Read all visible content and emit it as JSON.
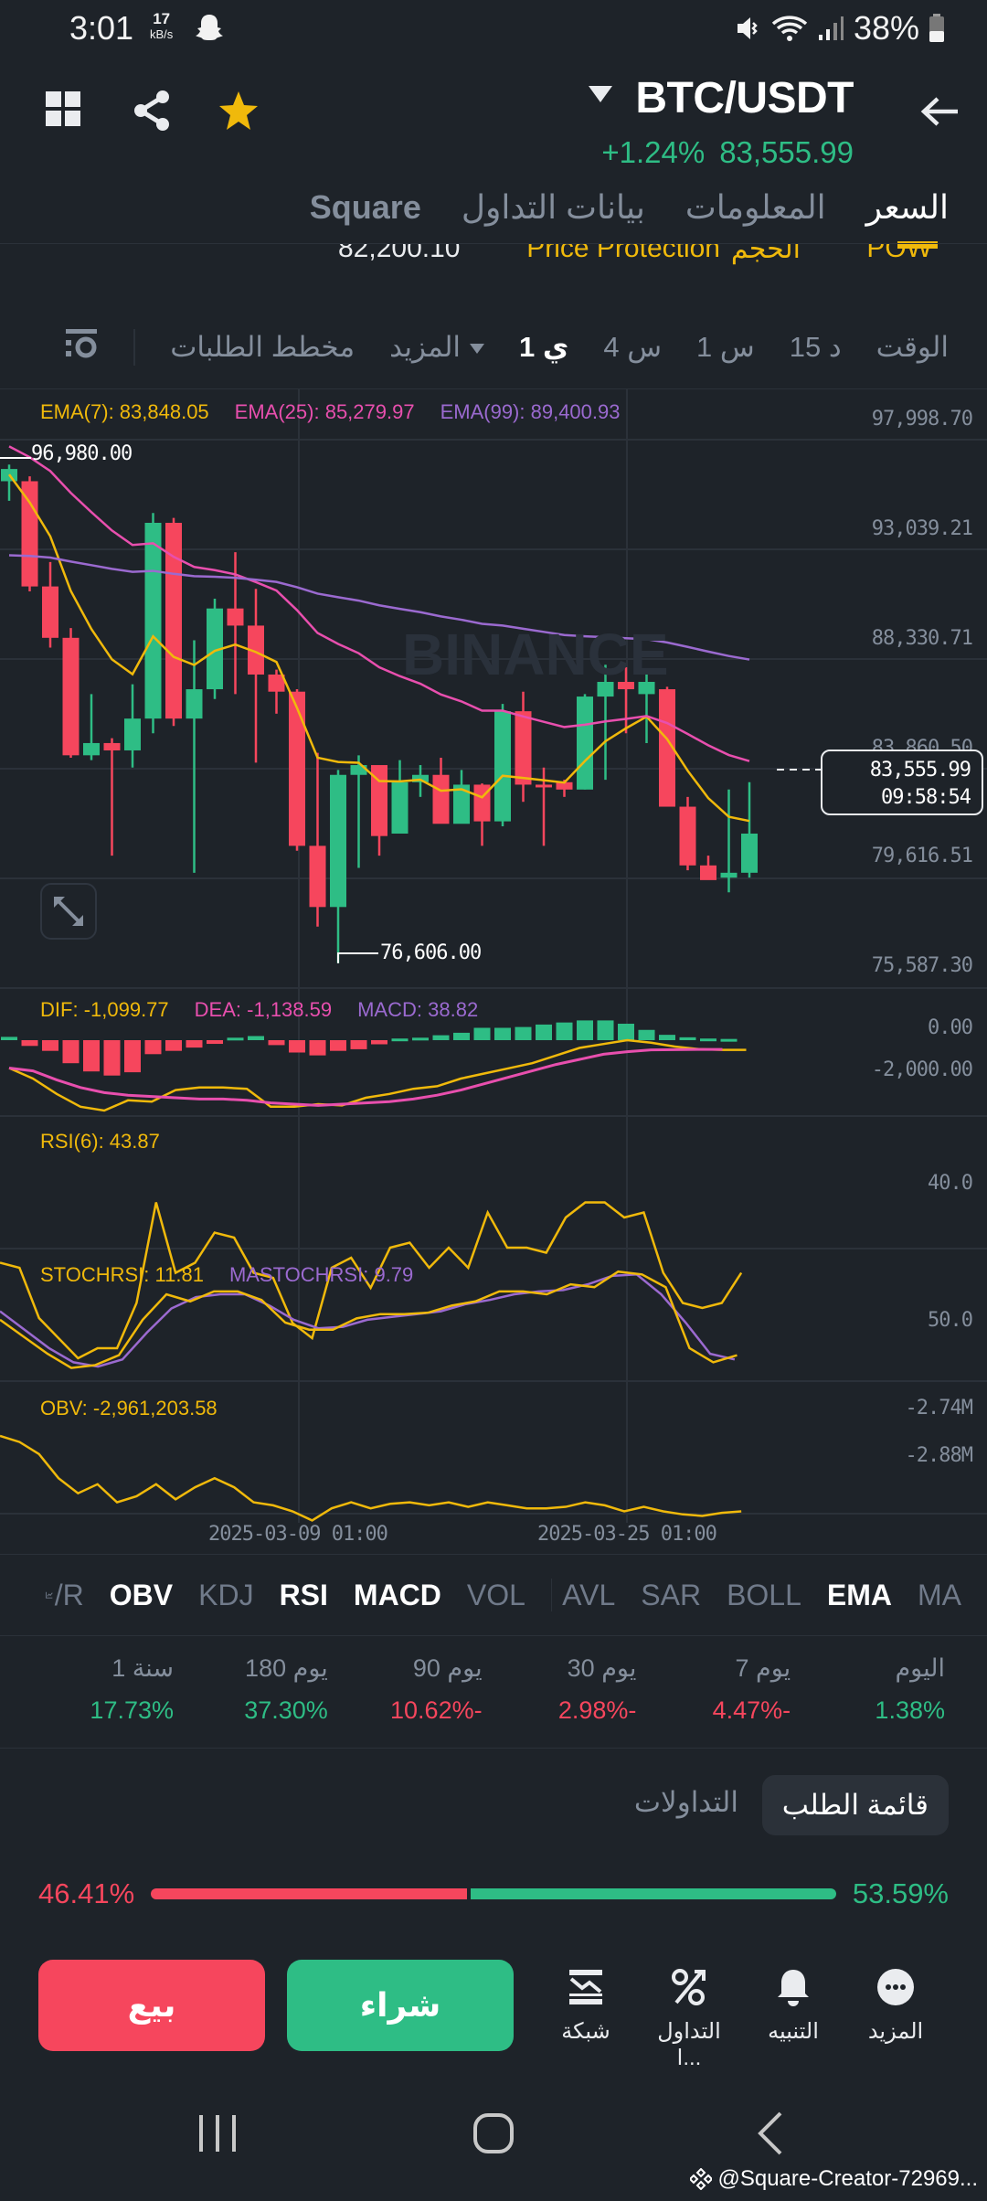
{
  "status_bar": {
    "time": "3:01",
    "net_speed": "17",
    "net_unit": "kB/s",
    "battery": "38%"
  },
  "header": {
    "pair": "BTC/USDT",
    "change_pct": "+1.24%",
    "last_price": "83,555.99",
    "colors": {
      "up": "#2ebd85",
      "down": "#f6465d",
      "accent": "#f0b90b"
    }
  },
  "tabs": [
    {
      "label": "السعر",
      "active": true
    },
    {
      "label": "المعلومات"
    },
    {
      "label": "بيانات التداول"
    },
    {
      "label": "Square"
    }
  ],
  "strip": {
    "items": [
      "POW",
      "الحجم",
      "Price Protection",
      "82,200.10"
    ]
  },
  "timeframes": {
    "items": [
      {
        "label": "الوقت"
      },
      {
        "label": "15 د"
      },
      {
        "label": "1 س"
      },
      {
        "label": "4 س"
      },
      {
        "label": "1 ي",
        "active": true
      },
      {
        "label": "المزيد"
      }
    ],
    "depth_label": "مخطط الطلبات"
  },
  "chart_data": [
    {
      "type": "candlestick",
      "title": "BTC/USDT 1D",
      "legend": [
        {
          "name": "EMA(7)",
          "value": "83,848.05",
          "color": "#f0b90b"
        },
        {
          "name": "EMA(25)",
          "value": "85,279.97",
          "color": "#e84fae"
        },
        {
          "name": "EMA(99)",
          "value": "89,400.93",
          "color": "#9b6ad0"
        }
      ],
      "y_ticks": [
        "97,998.70",
        "93,039.21",
        "88,330.71",
        "83,860.50",
        "79,616.51",
        "75,587.30"
      ],
      "ylim": [
        75587.3,
        97998.7
      ],
      "high_marker": "96,980.00",
      "low_marker": "76,606.00",
      "current_price": "83,555.99",
      "countdown": "09:58:54",
      "x_ticks": [
        "2025-03-09 01:00",
        "2025-03-25 01:00"
      ],
      "candles": [
        [
          96300,
          96980,
          95500,
          96800
        ],
        [
          96300,
          96500,
          91800,
          92000
        ],
        [
          92000,
          93000,
          89500,
          89900
        ],
        [
          89900,
          90300,
          85000,
          85100
        ],
        [
          85100,
          87600,
          84900,
          85600
        ],
        [
          85600,
          85800,
          81000,
          85300
        ],
        [
          85300,
          88000,
          84600,
          86600
        ],
        [
          86600,
          95000,
          86000,
          94600
        ],
        [
          94600,
          94800,
          86300,
          86600
        ],
        [
          86600,
          89800,
          80300,
          87800
        ],
        [
          87800,
          91500,
          87400,
          91100
        ],
        [
          91100,
          93400,
          87600,
          90400
        ],
        [
          90400,
          91900,
          84800,
          88400
        ],
        [
          88400,
          88600,
          86800,
          87700
        ],
        [
          87700,
          87800,
          81200,
          81400
        ],
        [
          81400,
          85200,
          78100,
          78900
        ],
        [
          78900,
          84500,
          76606,
          84300
        ],
        [
          84300,
          85100,
          80500,
          84700
        ],
        [
          84700,
          84300,
          81000,
          81800
        ],
        [
          81900,
          84900,
          82000,
          84000
        ],
        [
          84000,
          84700,
          83400,
          84300
        ],
        [
          84300,
          85000,
          82400,
          82300
        ],
        [
          82300,
          84500,
          83000,
          83900
        ],
        [
          83900,
          83950,
          81400,
          82400
        ],
        [
          82400,
          87200,
          82200,
          86900
        ],
        [
          86900,
          87700,
          83200,
          83900
        ],
        [
          83900,
          84600,
          81400,
          83800
        ],
        [
          84000,
          84100,
          83400,
          83700
        ],
        [
          83700,
          87600,
          83700,
          87500
        ],
        [
          87500,
          88800,
          84100,
          88100
        ],
        [
          88100,
          88700,
          86000,
          87800
        ],
        [
          87600,
          88500,
          85600,
          88100
        ],
        [
          87800,
          87900,
          83300,
          83000
        ],
        [
          83000,
          83400,
          80400,
          80600
        ],
        [
          80600,
          81000,
          80300,
          80000
        ],
        [
          80100,
          83700,
          79500,
          80300
        ],
        [
          80300,
          84000,
          80100,
          81900
        ]
      ]
    },
    {
      "type": "bar+line",
      "title": "MACD",
      "legend": [
        {
          "name": "DIF",
          "value": "-1,099.77",
          "color": "#f0b90b"
        },
        {
          "name": "DEA",
          "value": "-1,138.59",
          "color": "#e84fae"
        },
        {
          "name": "MACD",
          "value": "38.82",
          "color": "#9b6ad0"
        }
      ],
      "y_ticks": [
        "0.00",
        "-2,000.00"
      ],
      "histogram": [
        80,
        -140,
        -260,
        -560,
        -760,
        -860,
        -780,
        -340,
        -260,
        -180,
        -90,
        60,
        100,
        -120,
        -300,
        -370,
        -260,
        -220,
        -100,
        40,
        60,
        120,
        180,
        300,
        300,
        320,
        380,
        430,
        480,
        480,
        400,
        250,
        130,
        70,
        40,
        30
      ],
      "dif": [
        -1090,
        -1500,
        -2100,
        -2600,
        -2750,
        -2350,
        -2400,
        -1950,
        -1850,
        -1850,
        -1900,
        -2600,
        -2600,
        -2500,
        -2550,
        -2250,
        -2100,
        -1900,
        -1800,
        -1500,
        -1300,
        -1100,
        -900,
        -600,
        -300,
        -150,
        0,
        -100,
        -250,
        -350,
        -380,
        -380
      ],
      "dea": [
        -1090,
        -1200,
        -1550,
        -1850,
        -2050,
        -2150,
        -2200,
        -2250,
        -2300,
        -2300,
        -2350,
        -2450,
        -2500,
        -2550,
        -2500,
        -2450,
        -2400,
        -2300,
        -2150,
        -1950,
        -1700,
        -1450,
        -1200,
        -950,
        -750,
        -550,
        -450,
        -380,
        -370,
        -360,
        -360
      ]
    },
    {
      "type": "line",
      "title": "RSI",
      "legend": [
        {
          "name": "RSI(6)",
          "value": "43.87",
          "color": "#f0b90b"
        }
      ],
      "y_ticks": [
        "40.0"
      ],
      "values": [
        39,
        38,
        28,
        24,
        20,
        22,
        22,
        31,
        51,
        37,
        39,
        45,
        44,
        37,
        36,
        27,
        24,
        38,
        40,
        34,
        42,
        43,
        38,
        42,
        38,
        49,
        42,
        42,
        41,
        48,
        51,
        51,
        48,
        49,
        37,
        31,
        30,
        31,
        37
      ]
    },
    {
      "type": "line",
      "title": "StochRSI",
      "legend": [
        {
          "name": "STOCHRSI",
          "value": "11.81",
          "color": "#f0b90b"
        },
        {
          "name": "MASTOCHRSI",
          "value": "9.79",
          "color": "#9b6ad0"
        }
      ],
      "y_ticks": [
        "50.0"
      ],
      "stoch": [
        42,
        30,
        18,
        8,
        10,
        17,
        42,
        60,
        55,
        62,
        62,
        56,
        40,
        35,
        35,
        43,
        46,
        46,
        47,
        52,
        55,
        62,
        62,
        60,
        67,
        65,
        76,
        74,
        65,
        22,
        12,
        17
      ],
      "ma": [
        48,
        35,
        22,
        12,
        9,
        14,
        33,
        50,
        58,
        60,
        60,
        52,
        42,
        36,
        37,
        42,
        44,
        46,
        48,
        53,
        56,
        60,
        62,
        63,
        67,
        73,
        74,
        60,
        40,
        18,
        14
      ]
    },
    {
      "type": "line",
      "title": "OBV",
      "legend": [
        {
          "name": "OBV",
          "value": "-2,961,203.58",
          "color": "#f0b90b"
        }
      ],
      "y_ticks": [
        "-2.74M",
        "-2.88M"
      ],
      "values": [
        -2.7,
        -2.72,
        -2.76,
        -2.84,
        -2.89,
        -2.86,
        -2.92,
        -2.9,
        -2.86,
        -2.91,
        -2.87,
        -2.84,
        -2.87,
        -2.92,
        -2.93,
        -2.95,
        -2.98,
        -2.94,
        -2.92,
        -2.94,
        -2.925,
        -2.92,
        -2.93,
        -2.92,
        -2.935,
        -2.92,
        -2.93,
        -2.94,
        -2.94,
        -2.935,
        -2.92,
        -2.93,
        -2.95,
        -2.935,
        -2.95,
        -2.96,
        -2.965,
        -2.955,
        -2.95
      ]
    }
  ],
  "indicators": {
    "items": [
      {
        "label": "/R"
      },
      {
        "label": "OBV",
        "active": true
      },
      {
        "label": "KDJ"
      },
      {
        "label": "RSI",
        "active": true
      },
      {
        "label": "MACD",
        "active": true
      },
      {
        "label": "VOL"
      },
      {
        "label": "AVL"
      },
      {
        "label": "SAR"
      },
      {
        "label": "BOLL"
      },
      {
        "label": "EMA",
        "active": true
      },
      {
        "label": "MA"
      }
    ]
  },
  "performance": [
    {
      "label": "اليوم",
      "value": "1.38%",
      "dir": "up"
    },
    {
      "label": "7 يوم",
      "value": "4.47%-",
      "dir": "down"
    },
    {
      "label": "30 يوم",
      "value": "2.98%-",
      "dir": "down"
    },
    {
      "label": "90 يوم",
      "value": "10.62%-",
      "dir": "down"
    },
    {
      "label": "180 يوم",
      "value": "37.30%",
      "dir": "up"
    },
    {
      "label": "1 سنة",
      "value": "17.73%",
      "dir": "up"
    }
  ],
  "orderbook": {
    "tab_active": "قائمة الطلب",
    "tab_other": "التداولات",
    "sell_pct": "46.41%",
    "buy_pct": "53.59%"
  },
  "actions": {
    "sell": "بيع",
    "buy": "شراء",
    "grid": "شبكة",
    "trading": "التداول ا...",
    "alert": "التنبيه",
    "more": "المزيد"
  },
  "watermark": "@Square-Creator-72969..."
}
